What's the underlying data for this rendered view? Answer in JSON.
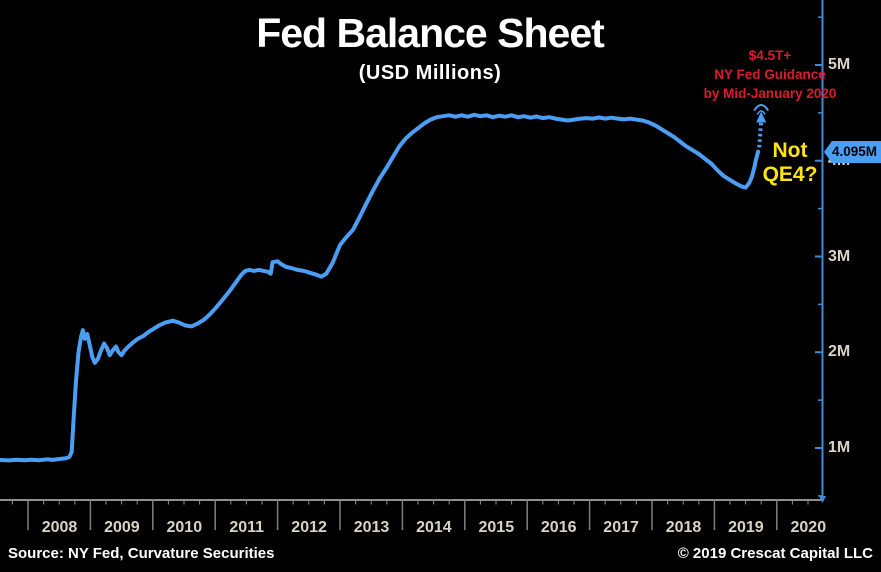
{
  "title": "Fed Balance Sheet",
  "subtitle": "(USD Millions)",
  "annotations": {
    "guidance": {
      "lines": [
        "$4.5T+",
        "NY Fed Guidance",
        "by Mid-January 2020"
      ],
      "color": "#de1b2e"
    },
    "not_qe4": {
      "lines": [
        "Not",
        "QE4?"
      ],
      "color": "#ffe414"
    }
  },
  "footer": {
    "source": "Source: NY Fed, Curvature Securities",
    "copyright": "© 2019 Crescat Capital LLC"
  },
  "colors": {
    "background": "#000000",
    "line": "#4a9ff5",
    "y_axis": "#3e8bd8",
    "x_axis": "#8f8f8f",
    "separator": "#7f7f7f",
    "tick_label": "#d8d2c8",
    "red": "#de1b2e",
    "yellow": "#ffe414",
    "badge_bg": "#4a9ff5",
    "badge_text": "#000000"
  },
  "chart_data": {
    "type": "line",
    "title": "Fed Balance Sheet",
    "ylabel": "USD Millions",
    "grid": false,
    "legend": "none",
    "x_axis": {
      "labels": [
        "2008",
        "2009",
        "2010",
        "2011",
        "2012",
        "2013",
        "2014",
        "2015",
        "2016",
        "2017",
        "2018",
        "2019",
        "2020"
      ],
      "start": 2007.55,
      "end": 2020.75,
      "minor_tick_step_years": 0.25
    },
    "y_axis": {
      "side": "right",
      "ticks": [
        {
          "v": 1,
          "label": "1M"
        },
        {
          "v": 2,
          "label": "2M"
        },
        {
          "v": 3,
          "label": "3M"
        },
        {
          "v": 4,
          "label": "4M"
        },
        {
          "v": 5,
          "label": "5M"
        }
      ],
      "minor_ticks": [
        0.5,
        1.5,
        2.5,
        3.5,
        4.5,
        5.5
      ],
      "min": 0.45,
      "max": 5.55
    },
    "last_value": 4.095,
    "last_value_label": "4.095M",
    "projection": {
      "label": "$4.5T+ NY Fed Guidance by Mid-January 2020",
      "arrow_year": 2019.75,
      "arrow_from": 4.14,
      "arrow_to": 4.42,
      "target_value": 4.5,
      "style": "dashed"
    },
    "series": [
      {
        "name": "Fed total assets (USD millions)",
        "color": "#4a9ff5",
        "points": [
          [
            2007.55,
            0.875
          ],
          [
            2007.7,
            0.87
          ],
          [
            2007.82,
            0.878
          ],
          [
            2007.95,
            0.872
          ],
          [
            2008.05,
            0.878
          ],
          [
            2008.18,
            0.873
          ],
          [
            2008.3,
            0.882
          ],
          [
            2008.4,
            0.876
          ],
          [
            2008.5,
            0.885
          ],
          [
            2008.6,
            0.892
          ],
          [
            2008.66,
            0.905
          ],
          [
            2008.7,
            0.96
          ],
          [
            2008.73,
            1.3
          ],
          [
            2008.77,
            1.7
          ],
          [
            2008.81,
            2.0
          ],
          [
            2008.85,
            2.16
          ],
          [
            2008.88,
            2.23
          ],
          [
            2008.91,
            2.14
          ],
          [
            2008.95,
            2.19
          ],
          [
            2008.98,
            2.1
          ],
          [
            2009.03,
            1.95
          ],
          [
            2009.07,
            1.89
          ],
          [
            2009.12,
            1.93
          ],
          [
            2009.17,
            2.02
          ],
          [
            2009.22,
            2.09
          ],
          [
            2009.27,
            2.04
          ],
          [
            2009.31,
            1.97
          ],
          [
            2009.36,
            2.02
          ],
          [
            2009.41,
            2.06
          ],
          [
            2009.45,
            2.0
          ],
          [
            2009.5,
            1.97
          ],
          [
            2009.55,
            2.02
          ],
          [
            2009.61,
            2.06
          ],
          [
            2009.68,
            2.1
          ],
          [
            2009.76,
            2.14
          ],
          [
            2009.85,
            2.17
          ],
          [
            2009.93,
            2.21
          ],
          [
            2010.0,
            2.24
          ],
          [
            2010.1,
            2.28
          ],
          [
            2010.2,
            2.31
          ],
          [
            2010.32,
            2.33
          ],
          [
            2010.42,
            2.31
          ],
          [
            2010.52,
            2.28
          ],
          [
            2010.62,
            2.27
          ],
          [
            2010.72,
            2.3
          ],
          [
            2010.82,
            2.34
          ],
          [
            2010.92,
            2.4
          ],
          [
            2011.02,
            2.47
          ],
          [
            2011.12,
            2.55
          ],
          [
            2011.22,
            2.63
          ],
          [
            2011.32,
            2.72
          ],
          [
            2011.42,
            2.81
          ],
          [
            2011.48,
            2.85
          ],
          [
            2011.55,
            2.86
          ],
          [
            2011.62,
            2.85
          ],
          [
            2011.7,
            2.86
          ],
          [
            2011.78,
            2.85
          ],
          [
            2011.85,
            2.84
          ],
          [
            2011.89,
            2.82
          ],
          [
            2011.92,
            2.94
          ],
          [
            2012.0,
            2.95
          ],
          [
            2012.06,
            2.92
          ],
          [
            2012.14,
            2.89
          ],
          [
            2012.22,
            2.88
          ],
          [
            2012.32,
            2.86
          ],
          [
            2012.42,
            2.85
          ],
          [
            2012.52,
            2.83
          ],
          [
            2012.62,
            2.81
          ],
          [
            2012.7,
            2.79
          ],
          [
            2012.78,
            2.82
          ],
          [
            2012.88,
            2.93
          ],
          [
            2013.0,
            3.12
          ],
          [
            2013.1,
            3.2
          ],
          [
            2013.21,
            3.28
          ],
          [
            2013.32,
            3.42
          ],
          [
            2013.42,
            3.55
          ],
          [
            2013.53,
            3.69
          ],
          [
            2013.64,
            3.82
          ],
          [
            2013.74,
            3.92
          ],
          [
            2013.85,
            4.04
          ],
          [
            2013.95,
            4.15
          ],
          [
            2014.05,
            4.23
          ],
          [
            2014.15,
            4.29
          ],
          [
            2014.25,
            4.34
          ],
          [
            2014.35,
            4.39
          ],
          [
            2014.45,
            4.43
          ],
          [
            2014.55,
            4.455
          ],
          [
            2014.65,
            4.465
          ],
          [
            2014.75,
            4.475
          ],
          [
            2014.85,
            4.46
          ],
          [
            2014.95,
            4.475
          ],
          [
            2015.05,
            4.46
          ],
          [
            2015.15,
            4.48
          ],
          [
            2015.25,
            4.465
          ],
          [
            2015.35,
            4.475
          ],
          [
            2015.45,
            4.455
          ],
          [
            2015.55,
            4.47
          ],
          [
            2015.65,
            4.46
          ],
          [
            2015.75,
            4.475
          ],
          [
            2015.85,
            4.455
          ],
          [
            2015.95,
            4.465
          ],
          [
            2016.05,
            4.45
          ],
          [
            2016.15,
            4.462
          ],
          [
            2016.25,
            4.445
          ],
          [
            2016.35,
            4.455
          ],
          [
            2016.45,
            4.44
          ],
          [
            2016.55,
            4.43
          ],
          [
            2016.65,
            4.42
          ],
          [
            2016.75,
            4.43
          ],
          [
            2016.85,
            4.44
          ],
          [
            2016.95,
            4.445
          ],
          [
            2017.05,
            4.44
          ],
          [
            2017.15,
            4.452
          ],
          [
            2017.25,
            4.44
          ],
          [
            2017.35,
            4.45
          ],
          [
            2017.45,
            4.44
          ],
          [
            2017.55,
            4.432
          ],
          [
            2017.65,
            4.44
          ],
          [
            2017.75,
            4.43
          ],
          [
            2017.85,
            4.42
          ],
          [
            2017.95,
            4.4
          ],
          [
            2018.05,
            4.37
          ],
          [
            2018.15,
            4.33
          ],
          [
            2018.25,
            4.29
          ],
          [
            2018.35,
            4.25
          ],
          [
            2018.45,
            4.2
          ],
          [
            2018.55,
            4.15
          ],
          [
            2018.65,
            4.11
          ],
          [
            2018.75,
            4.07
          ],
          [
            2018.85,
            4.02
          ],
          [
            2018.95,
            3.97
          ],
          [
            2019.05,
            3.9
          ],
          [
            2019.15,
            3.84
          ],
          [
            2019.25,
            3.8
          ],
          [
            2019.35,
            3.76
          ],
          [
            2019.44,
            3.73
          ],
          [
            2019.5,
            3.72
          ],
          [
            2019.56,
            3.77
          ],
          [
            2019.6,
            3.83
          ],
          [
            2019.64,
            3.93
          ],
          [
            2019.67,
            4.02
          ],
          [
            2019.7,
            4.095
          ]
        ]
      }
    ]
  }
}
